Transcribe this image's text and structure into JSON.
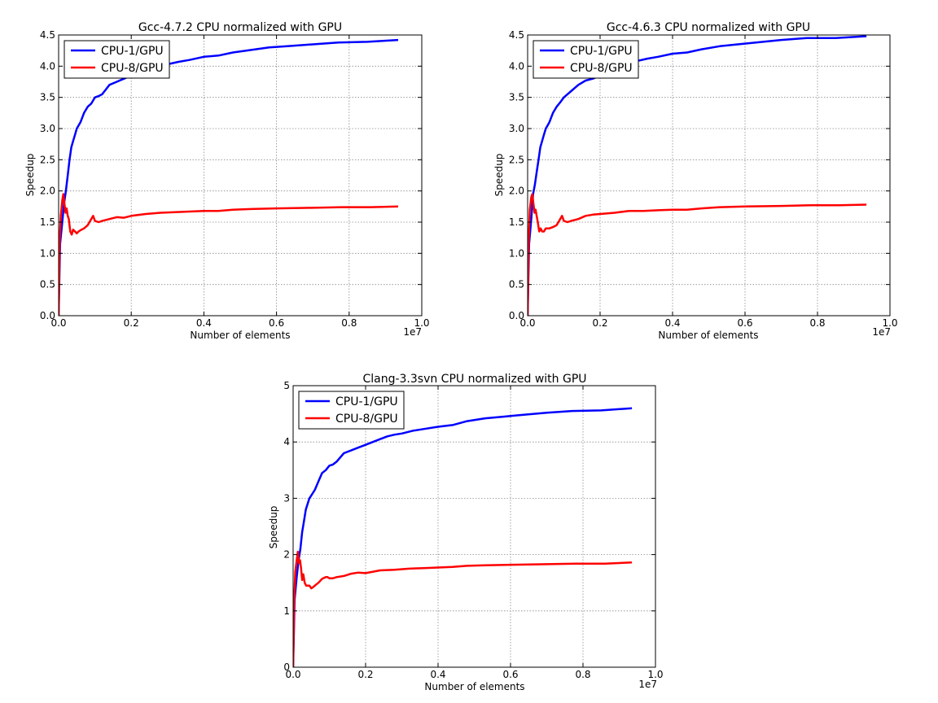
{
  "chart_data": [
    {
      "type": "line",
      "title": "Gcc-4.7.2 CPU normalized with GPU",
      "xlabel": "Number of elements",
      "ylabel": "Speedup",
      "x_offset_label": "1e7",
      "xlim": [
        0,
        10000000
      ],
      "ylim": [
        0,
        4.5
      ],
      "x_ticks": [
        0,
        2000000,
        4000000,
        6000000,
        8000000,
        10000000
      ],
      "x_tick_labels": [
        "0.0",
        "0.2",
        "0.4",
        "0.6",
        "0.8",
        "1.0"
      ],
      "y_ticks": [
        0,
        0.5,
        1,
        1.5,
        2,
        2.5,
        3,
        3.5,
        4,
        4.5
      ],
      "y_tick_labels": [
        "0.0",
        "0.5",
        "1.0",
        "1.5",
        "2.0",
        "2.5",
        "3.0",
        "3.5",
        "4.0",
        "4.5"
      ],
      "grid": true,
      "legend_position": "top-left",
      "series": [
        {
          "name": "CPU-1/GPU",
          "color": "#0000ff",
          "x": [
            0,
            40000,
            100000,
            150000,
            200000,
            250000,
            300000,
            350000,
            400000,
            450000,
            500000,
            550000,
            600000,
            700000,
            800000,
            900000,
            1000000,
            1100000,
            1200000,
            1400000,
            1600000,
            1800000,
            2000000,
            2200000,
            2400000,
            2600000,
            2800000,
            3000000,
            3300000,
            3600000,
            4000000,
            4400000,
            4800000,
            5300000,
            5800000,
            6300000,
            7000000,
            7700000,
            8500000,
            9350000
          ],
          "y": [
            0,
            1.15,
            1.5,
            1.8,
            2.0,
            2.25,
            2.5,
            2.7,
            2.8,
            2.9,
            3.0,
            3.05,
            3.1,
            3.25,
            3.35,
            3.4,
            3.5,
            3.52,
            3.55,
            3.7,
            3.75,
            3.8,
            3.85,
            3.9,
            3.95,
            3.97,
            4.0,
            4.03,
            4.07,
            4.1,
            4.15,
            4.17,
            4.22,
            4.26,
            4.3,
            4.32,
            4.35,
            4.38,
            4.39,
            4.42
          ]
        },
        {
          "name": "CPU-8/GPU",
          "color": "#ff0000",
          "x": [
            0,
            30000,
            60000,
            100000,
            130000,
            160000,
            190000,
            220000,
            250000,
            280000,
            320000,
            360000,
            400000,
            450000,
            500000,
            550000,
            600000,
            700000,
            800000,
            900000,
            950000,
            1000000,
            1100000,
            1200000,
            1400000,
            1600000,
            1800000,
            2000000,
            2400000,
            2800000,
            3200000,
            3600000,
            4000000,
            4400000,
            4800000,
            5300000,
            6000000,
            7000000,
            7800000,
            8600000,
            9350000
          ],
          "y": [
            0,
            1.2,
            1.6,
            1.85,
            1.95,
            1.8,
            1.65,
            1.72,
            1.6,
            1.55,
            1.35,
            1.3,
            1.38,
            1.35,
            1.32,
            1.35,
            1.37,
            1.4,
            1.45,
            1.55,
            1.6,
            1.52,
            1.5,
            1.52,
            1.55,
            1.58,
            1.57,
            1.6,
            1.63,
            1.65,
            1.66,
            1.67,
            1.68,
            1.68,
            1.7,
            1.71,
            1.72,
            1.73,
            1.74,
            1.74,
            1.75
          ]
        }
      ]
    },
    {
      "type": "line",
      "title": "Gcc-4.6.3 CPU normalized with GPU",
      "xlabel": "Number of elements",
      "ylabel": "Speedup",
      "x_offset_label": "1e7",
      "xlim": [
        0,
        10000000
      ],
      "ylim": [
        0,
        4.5
      ],
      "x_ticks": [
        0,
        2000000,
        4000000,
        6000000,
        8000000,
        10000000
      ],
      "x_tick_labels": [
        "0.0",
        "0.2",
        "0.4",
        "0.6",
        "0.8",
        "1.0"
      ],
      "y_ticks": [
        0,
        0.5,
        1,
        1.5,
        2,
        2.5,
        3,
        3.5,
        4,
        4.5
      ],
      "y_tick_labels": [
        "0.0",
        "0.5",
        "1.0",
        "1.5",
        "2.0",
        "2.5",
        "3.0",
        "3.5",
        "4.0",
        "4.5"
      ],
      "grid": true,
      "legend_position": "top-left",
      "series": [
        {
          "name": "CPU-1/GPU",
          "color": "#0000ff",
          "x": [
            0,
            40000,
            100000,
            150000,
            200000,
            250000,
            300000,
            350000,
            400000,
            450000,
            500000,
            550000,
            600000,
            700000,
            800000,
            900000,
            1000000,
            1100000,
            1200000,
            1400000,
            1600000,
            1800000,
            2000000,
            2200000,
            2400000,
            2600000,
            2800000,
            3000000,
            3300000,
            3600000,
            4000000,
            4400000,
            4800000,
            5300000,
            5800000,
            6300000,
            7000000,
            7700000,
            8500000,
            9350000
          ],
          "y": [
            0,
            1.15,
            1.55,
            1.95,
            2.1,
            2.3,
            2.5,
            2.7,
            2.8,
            2.9,
            3.0,
            3.05,
            3.1,
            3.25,
            3.35,
            3.42,
            3.5,
            3.55,
            3.6,
            3.7,
            3.77,
            3.8,
            3.85,
            3.9,
            3.95,
            4.0,
            4.05,
            4.08,
            4.12,
            4.15,
            4.2,
            4.22,
            4.27,
            4.32,
            4.35,
            4.38,
            4.42,
            4.45,
            4.45,
            4.48
          ]
        },
        {
          "name": "CPU-8/GPU",
          "color": "#ff0000",
          "x": [
            0,
            30000,
            60000,
            100000,
            130000,
            160000,
            190000,
            220000,
            250000,
            280000,
            320000,
            360000,
            400000,
            450000,
            500000,
            550000,
            600000,
            700000,
            800000,
            900000,
            950000,
            1000000,
            1100000,
            1200000,
            1400000,
            1600000,
            1800000,
            2000000,
            2400000,
            2800000,
            3200000,
            3600000,
            4000000,
            4400000,
            4800000,
            5300000,
            6000000,
            7000000,
            7800000,
            8600000,
            9350000
          ],
          "y": [
            0,
            1.2,
            1.7,
            1.9,
            1.95,
            1.8,
            1.65,
            1.7,
            1.6,
            1.5,
            1.35,
            1.4,
            1.35,
            1.35,
            1.4,
            1.4,
            1.4,
            1.42,
            1.45,
            1.55,
            1.6,
            1.52,
            1.5,
            1.52,
            1.55,
            1.6,
            1.62,
            1.63,
            1.65,
            1.68,
            1.68,
            1.69,
            1.7,
            1.7,
            1.72,
            1.74,
            1.75,
            1.76,
            1.77,
            1.77,
            1.78
          ]
        }
      ]
    },
    {
      "type": "line",
      "title": "Clang-3.3svn CPU normalized with GPU",
      "xlabel": "Number of elements",
      "ylabel": "Speedup",
      "x_offset_label": "1e7",
      "xlim": [
        0,
        10000000
      ],
      "ylim": [
        0,
        5
      ],
      "x_ticks": [
        0,
        2000000,
        4000000,
        6000000,
        8000000,
        10000000
      ],
      "x_tick_labels": [
        "0.0",
        "0.2",
        "0.4",
        "0.6",
        "0.8",
        "1.0"
      ],
      "y_ticks": [
        0,
        1,
        2,
        3,
        4,
        5
      ],
      "y_tick_labels": [
        "0",
        "1",
        "2",
        "3",
        "4",
        "5"
      ],
      "grid": true,
      "legend_position": "top-left",
      "series": [
        {
          "name": "CPU-1/GPU",
          "color": "#0000ff",
          "x": [
            0,
            40000,
            100000,
            150000,
            200000,
            250000,
            300000,
            350000,
            400000,
            450000,
            500000,
            550000,
            600000,
            700000,
            800000,
            900000,
            1000000,
            1100000,
            1200000,
            1400000,
            1600000,
            1800000,
            2000000,
            2200000,
            2400000,
            2600000,
            2800000,
            3000000,
            3300000,
            3600000,
            4000000,
            4400000,
            4800000,
            5300000,
            5800000,
            6300000,
            7000000,
            7700000,
            8500000,
            9350000
          ],
          "y": [
            0,
            1.2,
            1.6,
            1.9,
            2.1,
            2.4,
            2.6,
            2.8,
            2.9,
            3.0,
            3.05,
            3.1,
            3.15,
            3.3,
            3.45,
            3.5,
            3.58,
            3.6,
            3.65,
            3.8,
            3.85,
            3.9,
            3.95,
            4.0,
            4.05,
            4.1,
            4.13,
            4.15,
            4.2,
            4.23,
            4.27,
            4.3,
            4.37,
            4.42,
            4.45,
            4.48,
            4.52,
            4.55,
            4.56,
            4.6
          ]
        },
        {
          "name": "CPU-8/GPU",
          "color": "#ff0000",
          "x": [
            0,
            30000,
            60000,
            100000,
            130000,
            160000,
            190000,
            220000,
            250000,
            280000,
            320000,
            360000,
            400000,
            450000,
            500000,
            550000,
            600000,
            700000,
            800000,
            900000,
            950000,
            1000000,
            1100000,
            1200000,
            1400000,
            1600000,
            1800000,
            2000000,
            2400000,
            2800000,
            3200000,
            3600000,
            4000000,
            4400000,
            4800000,
            5300000,
            6000000,
            7000000,
            7800000,
            8600000,
            9350000
          ],
          "y": [
            0,
            1.2,
            1.7,
            1.9,
            2.05,
            1.85,
            1.9,
            1.75,
            1.55,
            1.65,
            1.5,
            1.45,
            1.45,
            1.45,
            1.4,
            1.42,
            1.45,
            1.5,
            1.57,
            1.6,
            1.6,
            1.58,
            1.58,
            1.6,
            1.62,
            1.66,
            1.68,
            1.67,
            1.72,
            1.73,
            1.75,
            1.76,
            1.77,
            1.78,
            1.8,
            1.81,
            1.82,
            1.83,
            1.84,
            1.84,
            1.86
          ]
        }
      ]
    }
  ]
}
